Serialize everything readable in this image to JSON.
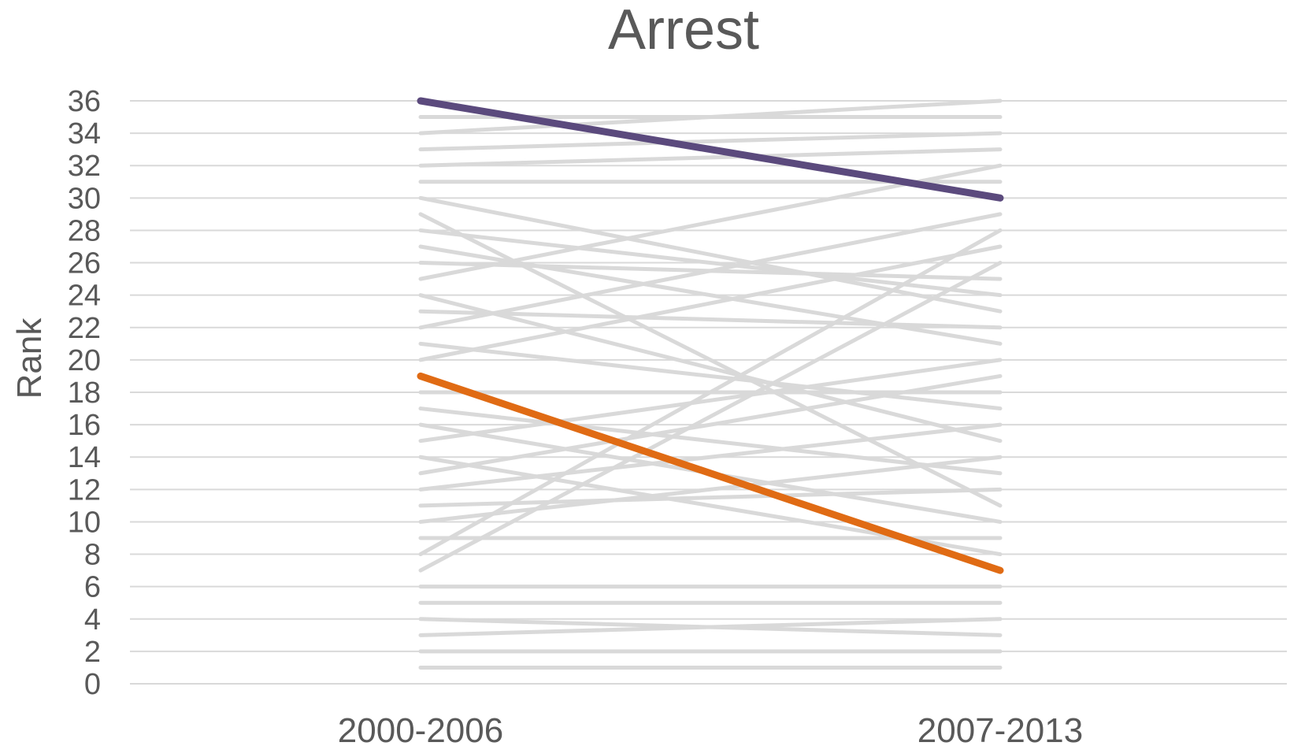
{
  "chart_data": {
    "type": "line",
    "title": "Arrest",
    "xlabel": "",
    "ylabel": "Rank",
    "categories": [
      "2000-2006",
      "2007-2013"
    ],
    "ylim": [
      0,
      36
    ],
    "yticks": [
      0,
      2,
      4,
      6,
      8,
      10,
      12,
      14,
      16,
      18,
      20,
      22,
      24,
      26,
      28,
      30,
      32,
      34,
      36
    ],
    "grid": true,
    "legend": "none",
    "colors": {
      "background": "#d9d9d9",
      "highlight_purple": "#5b4a7d",
      "highlight_orange": "#e06b14",
      "text": "#595959"
    },
    "series": [
      {
        "values": [
          35,
          35
        ],
        "highlight": false
      },
      {
        "values": [
          34,
          36
        ],
        "highlight": false
      },
      {
        "values": [
          33,
          34
        ],
        "highlight": false
      },
      {
        "values": [
          32,
          33
        ],
        "highlight": false
      },
      {
        "values": [
          31,
          31
        ],
        "highlight": false
      },
      {
        "values": [
          30,
          23
        ],
        "highlight": false
      },
      {
        "values": [
          29,
          11
        ],
        "highlight": false
      },
      {
        "values": [
          28,
          24
        ],
        "highlight": false
      },
      {
        "values": [
          27,
          21
        ],
        "highlight": false
      },
      {
        "values": [
          26,
          25
        ],
        "highlight": false
      },
      {
        "values": [
          25,
          32
        ],
        "highlight": false
      },
      {
        "values": [
          24,
          15
        ],
        "highlight": false
      },
      {
        "values": [
          23,
          22
        ],
        "highlight": false
      },
      {
        "values": [
          22,
          29
        ],
        "highlight": false
      },
      {
        "values": [
          21,
          17
        ],
        "highlight": false
      },
      {
        "values": [
          20,
          27
        ],
        "highlight": false
      },
      {
        "values": [
          18,
          18
        ],
        "highlight": false
      },
      {
        "values": [
          17,
          13
        ],
        "highlight": false
      },
      {
        "values": [
          16,
          10
        ],
        "highlight": false
      },
      {
        "values": [
          15,
          20
        ],
        "highlight": false
      },
      {
        "values": [
          14,
          8
        ],
        "highlight": false
      },
      {
        "values": [
          13,
          19
        ],
        "highlight": false
      },
      {
        "values": [
          12,
          16
        ],
        "highlight": false
      },
      {
        "values": [
          11,
          12
        ],
        "highlight": false
      },
      {
        "values": [
          10,
          14
        ],
        "highlight": false
      },
      {
        "values": [
          9,
          9
        ],
        "highlight": false
      },
      {
        "values": [
          8,
          28
        ],
        "highlight": false
      },
      {
        "values": [
          7,
          26
        ],
        "highlight": false
      },
      {
        "values": [
          6,
          6
        ],
        "highlight": false
      },
      {
        "values": [
          5,
          5
        ],
        "highlight": false
      },
      {
        "values": [
          4,
          3
        ],
        "highlight": false
      },
      {
        "values": [
          3,
          4
        ],
        "highlight": false
      },
      {
        "values": [
          2,
          2
        ],
        "highlight": false
      },
      {
        "values": [
          1,
          1
        ],
        "highlight": false
      },
      {
        "values": [
          36,
          30
        ],
        "highlight": true,
        "color": "#5b4a7d"
      },
      {
        "values": [
          19,
          7
        ],
        "highlight": true,
        "color": "#e06b14"
      }
    ]
  }
}
